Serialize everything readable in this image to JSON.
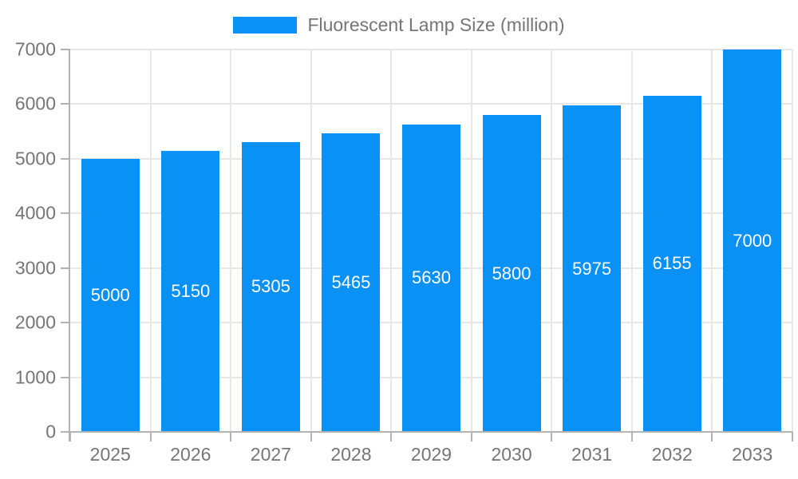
{
  "chart_data": {
    "type": "bar",
    "title": "Fluorescent Lamp Size (million)",
    "legend_position": "top",
    "categories": [
      "2025",
      "2026",
      "2027",
      "2028",
      "2029",
      "2030",
      "2031",
      "2032",
      "2033"
    ],
    "series": [
      {
        "name": "Fluorescent Lamp Size (million)",
        "values": [
          5000,
          5150,
          5305,
          5465,
          5630,
          5800,
          5975,
          6155,
          7000
        ]
      }
    ],
    "xlabel": "",
    "ylabel": "",
    "ylim": [
      0,
      7000
    ],
    "yticks": [
      0,
      1000,
      2000,
      3000,
      4000,
      5000,
      6000,
      7000
    ],
    "grid": true,
    "bar_value_labels": true,
    "colors": {
      "bar": "#0991f5",
      "bar_label_text": "#ffffff",
      "axis_text": "#757575",
      "gridline": "#e7e7e7",
      "axis_line": "#b3b3b3",
      "background": "#ffffff"
    }
  }
}
